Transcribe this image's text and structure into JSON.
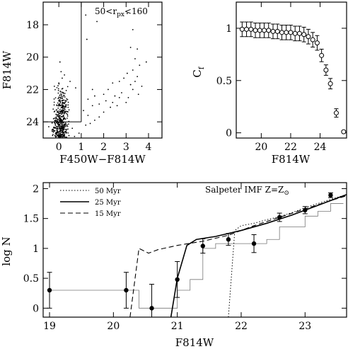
{
  "chart_data": [
    {
      "id": "cmd",
      "type": "scatter",
      "xlabel": "F450W−F814W",
      "ylabel": "F814W",
      "xlim": [
        -0.7,
        4.6
      ],
      "ylim": [
        25.0,
        16.6
      ],
      "y_inverted": true,
      "xticks": [
        0,
        1,
        2,
        3,
        4
      ],
      "yticks": [
        18,
        20,
        22,
        24
      ],
      "annotation": {
        "prefix": "50<r",
        "sub": "px",
        "suffix": "<160"
      },
      "lines": [
        {
          "x": [
            1.0,
            1.0
          ],
          "y": [
            24.0,
            16.6
          ]
        },
        {
          "x": [
            -0.7,
            1.0
          ],
          "y": [
            24.0,
            24.0
          ]
        }
      ],
      "points": [
        [
          1.2,
          17.4
        ],
        [
          1.25,
          18.9
        ],
        [
          1.7,
          17.8
        ],
        [
          3.05,
          17.3
        ],
        [
          3.2,
          19.4
        ],
        [
          3.5,
          19.5
        ],
        [
          3.3,
          18.3
        ],
        [
          0.05,
          20.3
        ],
        [
          0.1,
          20.9
        ],
        [
          0.25,
          21.1
        ],
        [
          -0.2,
          21.8
        ],
        [
          0.0,
          21.6
        ],
        [
          0.15,
          21.3
        ],
        [
          0.5,
          21.5
        ],
        [
          0.75,
          21.9
        ],
        [
          1.3,
          22.6
        ],
        [
          1.5,
          22.0
        ],
        [
          1.6,
          22.4
        ],
        [
          1.8,
          22.9
        ],
        [
          2.0,
          22.3
        ],
        [
          2.2,
          22.0
        ],
        [
          2.4,
          21.6
        ],
        [
          2.7,
          21.5
        ],
        [
          2.9,
          21.3
        ],
        [
          3.05,
          21.0
        ],
        [
          3.3,
          20.8
        ],
        [
          3.5,
          21.2
        ],
        [
          3.6,
          20.5
        ],
        [
          3.4,
          20.1
        ],
        [
          3.9,
          20.3
        ],
        [
          2.5,
          22.4
        ],
        [
          2.8,
          22.2
        ],
        [
          3.1,
          22.5
        ],
        [
          3.3,
          22.0
        ],
        [
          3.2,
          21.7
        ],
        [
          3.0,
          22.8
        ],
        [
          2.6,
          23.0
        ],
        [
          2.3,
          23.1
        ],
        [
          2.0,
          23.4
        ],
        [
          1.8,
          23.7
        ],
        [
          1.6,
          23.9
        ],
        [
          1.4,
          24.1
        ],
        [
          1.2,
          24.2
        ],
        [
          1.5,
          23.0
        ],
        [
          1.3,
          23.6
        ],
        [
          1.1,
          23.3
        ],
        [
          2.1,
          22.7
        ],
        [
          2.4,
          22.8
        ],
        [
          2.7,
          22.5
        ],
        [
          3.4,
          21.5
        ],
        [
          3.7,
          21.8
        ],
        [
          3.55,
          22.3
        ],
        [
          -0.3,
          24.5
        ],
        [
          -0.1,
          24.8
        ],
        [
          0.3,
          24.6
        ],
        [
          0.6,
          24.4
        ],
        [
          0.9,
          24.7
        ],
        [
          -0.45,
          24.3
        ],
        [
          0.45,
          24.85
        ],
        [
          0.7,
          24.9
        ]
      ],
      "cluster": {
        "x_mean": 0.1,
        "x_spread": 0.45,
        "y_min": 21.5,
        "y_max": 25.0,
        "count": 460
      }
    },
    {
      "id": "completeness",
      "type": "line",
      "xlabel": "F814W",
      "ylabel": "C",
      "ylabel_sub": "f",
      "xlim": [
        18.3,
        25.8
      ],
      "ylim": [
        -0.05,
        1.25
      ],
      "xticks": [
        20,
        22,
        24
      ],
      "yticks": [
        0,
        0.5,
        1
      ],
      "ytick_labels": [
        "0",
        "0.5",
        "1"
      ],
      "marker": "open-circle",
      "x": [
        18.7,
        19.0,
        19.3,
        19.6,
        19.9,
        20.2,
        20.5,
        20.8,
        21.1,
        21.4,
        21.7,
        22.0,
        22.3,
        22.6,
        22.9,
        23.2,
        23.5,
        23.8,
        24.1,
        24.4,
        24.7,
        25.1,
        25.6
      ],
      "y": [
        0.99,
        0.99,
        0.99,
        0.98,
        0.98,
        0.98,
        0.98,
        0.97,
        0.97,
        0.96,
        0.96,
        0.96,
        0.95,
        0.95,
        0.94,
        0.92,
        0.89,
        0.86,
        0.74,
        0.6,
        0.47,
        0.19,
        0.01
      ],
      "err": [
        0.07,
        0.07,
        0.07,
        0.07,
        0.07,
        0.07,
        0.07,
        0.07,
        0.07,
        0.07,
        0.07,
        0.07,
        0.07,
        0.07,
        0.07,
        0.07,
        0.07,
        0.07,
        0.06,
        0.05,
        0.05,
        0.04,
        0.01
      ]
    },
    {
      "id": "luminosity-function",
      "type": "line",
      "xlabel": "F814W",
      "ylabel": "log N",
      "xlim": [
        18.9,
        23.65
      ],
      "ylim": [
        -0.15,
        2.1
      ],
      "xticks": [
        19,
        20,
        21,
        22,
        23
      ],
      "yticks": [
        0,
        0.5,
        1,
        1.5,
        2
      ],
      "ytick_labels": [
        "0",
        "0.5",
        "1",
        "1.5",
        "2"
      ],
      "annotation": {
        "text": "Salpeter IMF Z=Z",
        "sub": "⊙"
      },
      "legend_placement": "top-left",
      "legend": [
        {
          "label": "50 Myr",
          "dash": "dotted"
        },
        {
          "label": "25 Myr",
          "dash": "solid"
        },
        {
          "label": "15 Myr",
          "dash": "dashed"
        }
      ],
      "histogram": {
        "edges": [
          19.0,
          19.2,
          19.4,
          19.6,
          19.8,
          20.0,
          20.2,
          20.4,
          20.6,
          20.8,
          21.0,
          21.2,
          21.4,
          21.6,
          21.8,
          22.0,
          22.2,
          22.4,
          22.6,
          22.8,
          23.0,
          23.2,
          23.4,
          23.6
        ],
        "values": [
          0.3,
          0.3,
          0.3,
          0.3,
          0.3,
          0.3,
          0.3,
          0.0,
          0.0,
          0.0,
          0.3,
          0.48,
          1.0,
          1.08,
          1.08,
          1.08,
          1.08,
          1.15,
          1.36,
          1.36,
          1.54,
          1.62,
          1.75
        ]
      },
      "data_points": {
        "x": [
          19.0,
          20.2,
          20.6,
          21.0,
          21.4,
          21.8,
          22.2,
          22.6,
          23.0,
          23.4
        ],
        "y": [
          0.3,
          0.3,
          0.0,
          0.48,
          1.04,
          1.15,
          1.08,
          1.52,
          1.64,
          1.89
        ],
        "err": [
          0.3,
          0.3,
          0.4,
          0.3,
          0.12,
          0.1,
          0.15,
          0.07,
          0.06,
          0.04
        ]
      },
      "models": [
        {
          "label": "50 Myr",
          "dash": "dotted",
          "x": [
            21.8,
            21.9,
            22.0,
            22.2,
            22.4,
            22.6,
            22.8,
            23.0,
            23.2,
            23.4,
            23.65
          ],
          "y": [
            -0.15,
            1.3,
            1.38,
            1.42,
            1.48,
            1.53,
            1.6,
            1.68,
            1.75,
            1.82,
            1.9
          ]
        },
        {
          "label": "25 Myr",
          "dash": "solid",
          "x": [
            20.9,
            21.0,
            21.15,
            21.3,
            21.6,
            22.0,
            22.4,
            22.8,
            23.2,
            23.65
          ],
          "y": [
            -0.15,
            0.5,
            1.05,
            1.15,
            1.2,
            1.3,
            1.42,
            1.56,
            1.72,
            1.9
          ]
        },
        {
          "label": "15 Myr",
          "dash": "dashed",
          "x": [
            20.26,
            20.4,
            20.55,
            20.7,
            21.0,
            21.4,
            21.8,
            22.2,
            22.6,
            23.0,
            23.4,
            23.65
          ],
          "y": [
            -0.15,
            1.0,
            0.92,
            0.98,
            1.05,
            1.12,
            1.22,
            1.38,
            1.52,
            1.66,
            1.8,
            1.88
          ]
        }
      ]
    }
  ]
}
